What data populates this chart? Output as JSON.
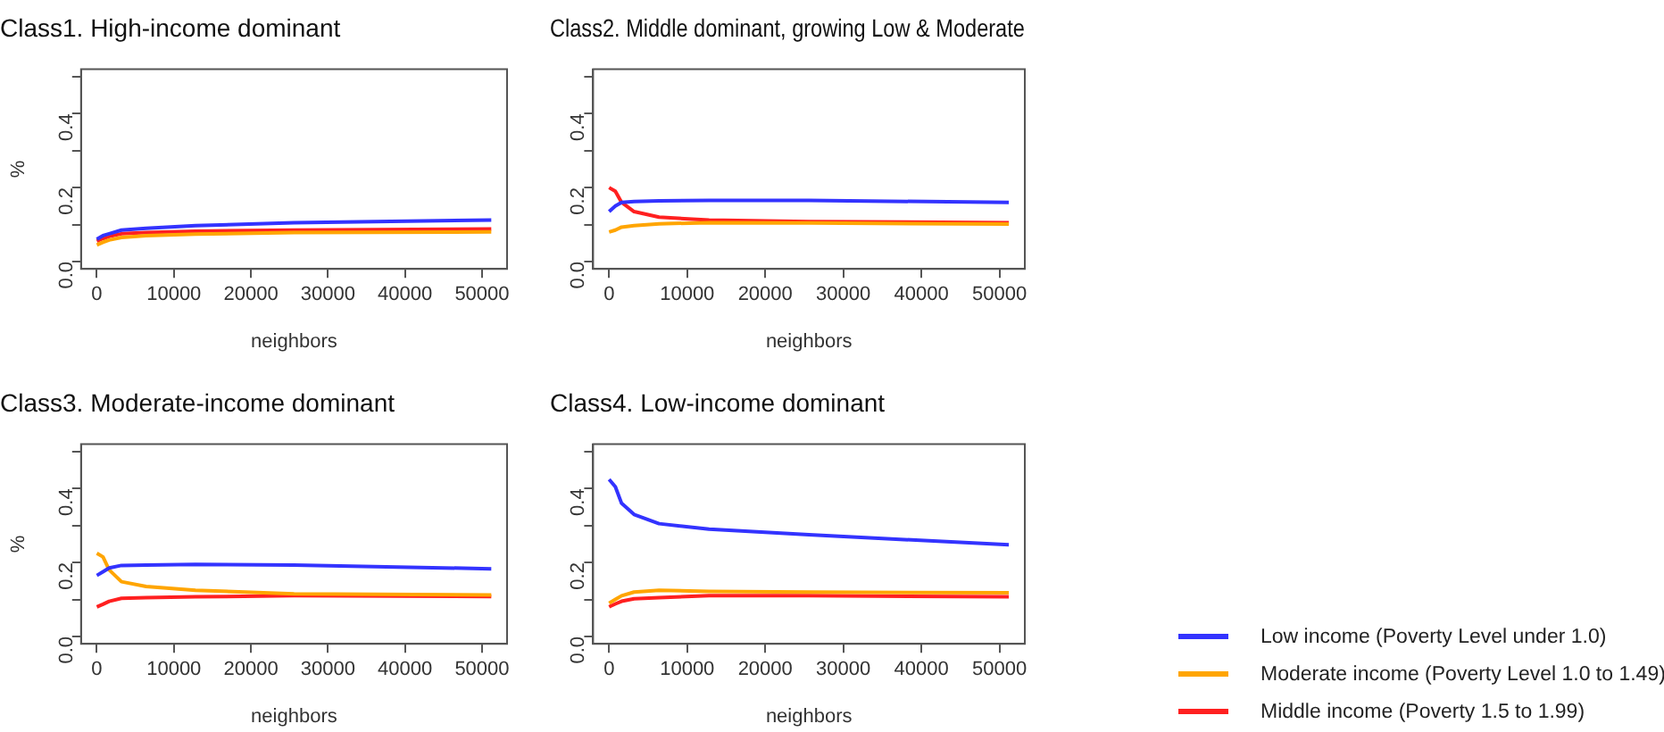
{
  "chart_data": [
    {
      "type": "line",
      "title": "Class1. High-income dominant",
      "xlabel": "neighbors",
      "ylabel": "%",
      "x": [
        0,
        800,
        1600,
        3200,
        6400,
        12800,
        25600,
        51200
      ],
      "series": [
        {
          "color": "#3333ff",
          "values": [
            0.06,
            0.07,
            0.075,
            0.085,
            0.09,
            0.097,
            0.105,
            0.112
          ]
        },
        {
          "color": "#ffa500",
          "values": [
            0.045,
            0.052,
            0.058,
            0.065,
            0.07,
            0.074,
            0.078,
            0.08
          ]
        },
        {
          "color": "#ff2020",
          "values": [
            0.055,
            0.062,
            0.068,
            0.075,
            0.078,
            0.082,
            0.085,
            0.088
          ]
        }
      ],
      "xlim": [
        -2048,
        53248
      ],
      "xticks": [
        0,
        10000,
        20000,
        30000,
        40000,
        50000
      ],
      "ylim": [
        -0.02,
        0.52
      ],
      "yticks": [
        {
          "value": 0,
          "label": "0.0"
        },
        {
          "value": 0.1,
          "label": null
        },
        {
          "value": 0.2,
          "label": "0.2"
        },
        {
          "value": 0.3,
          "label": null
        },
        {
          "value": 0.4,
          "label": "0.4"
        },
        {
          "value": 0.5,
          "label": null
        }
      ]
    },
    {
      "type": "line",
      "title": "Class2. Middle dominant, growing Low & Moderate",
      "xlabel": "neighbors",
      "x": [
        0,
        800,
        1600,
        3200,
        6400,
        12800,
        25600,
        51200
      ],
      "series": [
        {
          "color": "#3333ff",
          "values": [
            0.135,
            0.15,
            0.16,
            0.162,
            0.164,
            0.165,
            0.165,
            0.16
          ]
        },
        {
          "color": "#ffa500",
          "values": [
            0.08,
            0.085,
            0.093,
            0.097,
            0.102,
            0.105,
            0.104,
            0.101
          ]
        },
        {
          "color": "#ff2020",
          "values": [
            0.2,
            0.19,
            0.16,
            0.135,
            0.12,
            0.112,
            0.108,
            0.105
          ]
        }
      ],
      "xlim": [
        -2048,
        53248
      ],
      "xticks": [
        0,
        10000,
        20000,
        30000,
        40000,
        50000
      ],
      "ylim": [
        -0.02,
        0.52
      ],
      "yticks": [
        {
          "value": 0,
          "label": "0.0"
        },
        {
          "value": 0.1,
          "label": null
        },
        {
          "value": 0.2,
          "label": "0.2"
        },
        {
          "value": 0.3,
          "label": null
        },
        {
          "value": 0.4,
          "label": "0.4"
        },
        {
          "value": 0.5,
          "label": null
        }
      ]
    },
    {
      "type": "line",
      "title": "Class3. Moderate-income dominant",
      "xlabel": "neighbors",
      "ylabel": "%",
      "x": [
        0,
        800,
        1600,
        3200,
        6400,
        12800,
        25600,
        51200
      ],
      "series": [
        {
          "color": "#3333ff",
          "values": [
            0.165,
            0.175,
            0.185,
            0.192,
            0.193,
            0.195,
            0.193,
            0.183
          ]
        },
        {
          "color": "#ffa500",
          "values": [
            0.225,
            0.215,
            0.18,
            0.148,
            0.135,
            0.125,
            0.115,
            0.112
          ]
        },
        {
          "color": "#ff2020",
          "values": [
            0.08,
            0.087,
            0.095,
            0.103,
            0.105,
            0.107,
            0.11,
            0.108
          ]
        }
      ],
      "xlim": [
        -2048,
        53248
      ],
      "xticks": [
        0,
        10000,
        20000,
        30000,
        40000,
        50000
      ],
      "ylim": [
        -0.02,
        0.52
      ],
      "yticks": [
        {
          "value": 0,
          "label": "0.0"
        },
        {
          "value": 0.1,
          "label": null
        },
        {
          "value": 0.2,
          "label": "0.2"
        },
        {
          "value": 0.3,
          "label": null
        },
        {
          "value": 0.4,
          "label": "0.4"
        },
        {
          "value": 0.5,
          "label": null
        }
      ]
    },
    {
      "type": "line",
      "title": "Class4. Low-income dominant",
      "xlabel": "neighbors",
      "legend": "right",
      "x": [
        0,
        800,
        1600,
        3200,
        6400,
        12800,
        25600,
        51200
      ],
      "series": [
        {
          "name": "Low income (Poverty Level under 1.0)",
          "color": "#3333ff",
          "values": [
            0.425,
            0.405,
            0.36,
            0.33,
            0.305,
            0.29,
            0.275,
            0.248
          ]
        },
        {
          "name": "Moderate income (Poverty Level 1.0 to 1.49)",
          "color": "#ffa500",
          "values": [
            0.09,
            0.1,
            0.11,
            0.12,
            0.125,
            0.122,
            0.12,
            0.118
          ]
        },
        {
          "name": "Middle income (Poverty 1.5 to 1.99)",
          "color": "#ff2020",
          "values": [
            0.08,
            0.088,
            0.095,
            0.102,
            0.105,
            0.11,
            0.11,
            0.107
          ]
        }
      ],
      "xlim": [
        -2048,
        53248
      ],
      "xticks": [
        0,
        10000,
        20000,
        30000,
        40000,
        50000
      ],
      "ylim": [
        -0.02,
        0.52
      ],
      "yticks": [
        {
          "value": 0,
          "label": "0.0"
        },
        {
          "value": 0.1,
          "label": null
        },
        {
          "value": 0.2,
          "label": "0.2"
        },
        {
          "value": 0.3,
          "label": null
        },
        {
          "value": 0.4,
          "label": "0.4"
        },
        {
          "value": 0.5,
          "label": null
        }
      ]
    }
  ]
}
